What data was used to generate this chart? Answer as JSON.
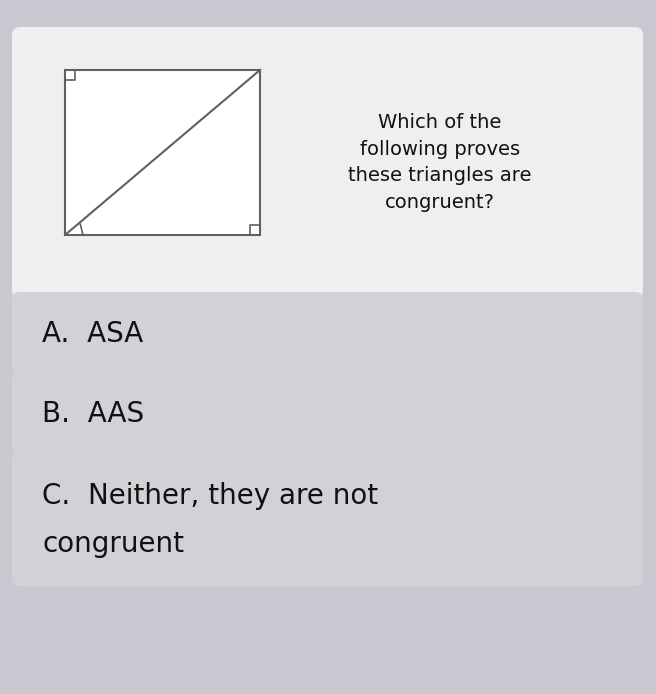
{
  "bg_color": "#c8c8d0",
  "card_bg": "#efefef",
  "option_bg": "#d2d2d6",
  "title_text": "Which of the\nfollowing proves\nthese triangles are\ncongruent?",
  "option_A": "A.  ASA",
  "option_B": "B.  AAS",
  "option_C_line1": "C.  Neither, they are not",
  "option_C_line2": "congruent",
  "title_fontsize": 14,
  "option_fontsize": 20,
  "text_color": "#111111",
  "fig_width": 6.56,
  "fig_height": 6.94,
  "dpi": 100
}
